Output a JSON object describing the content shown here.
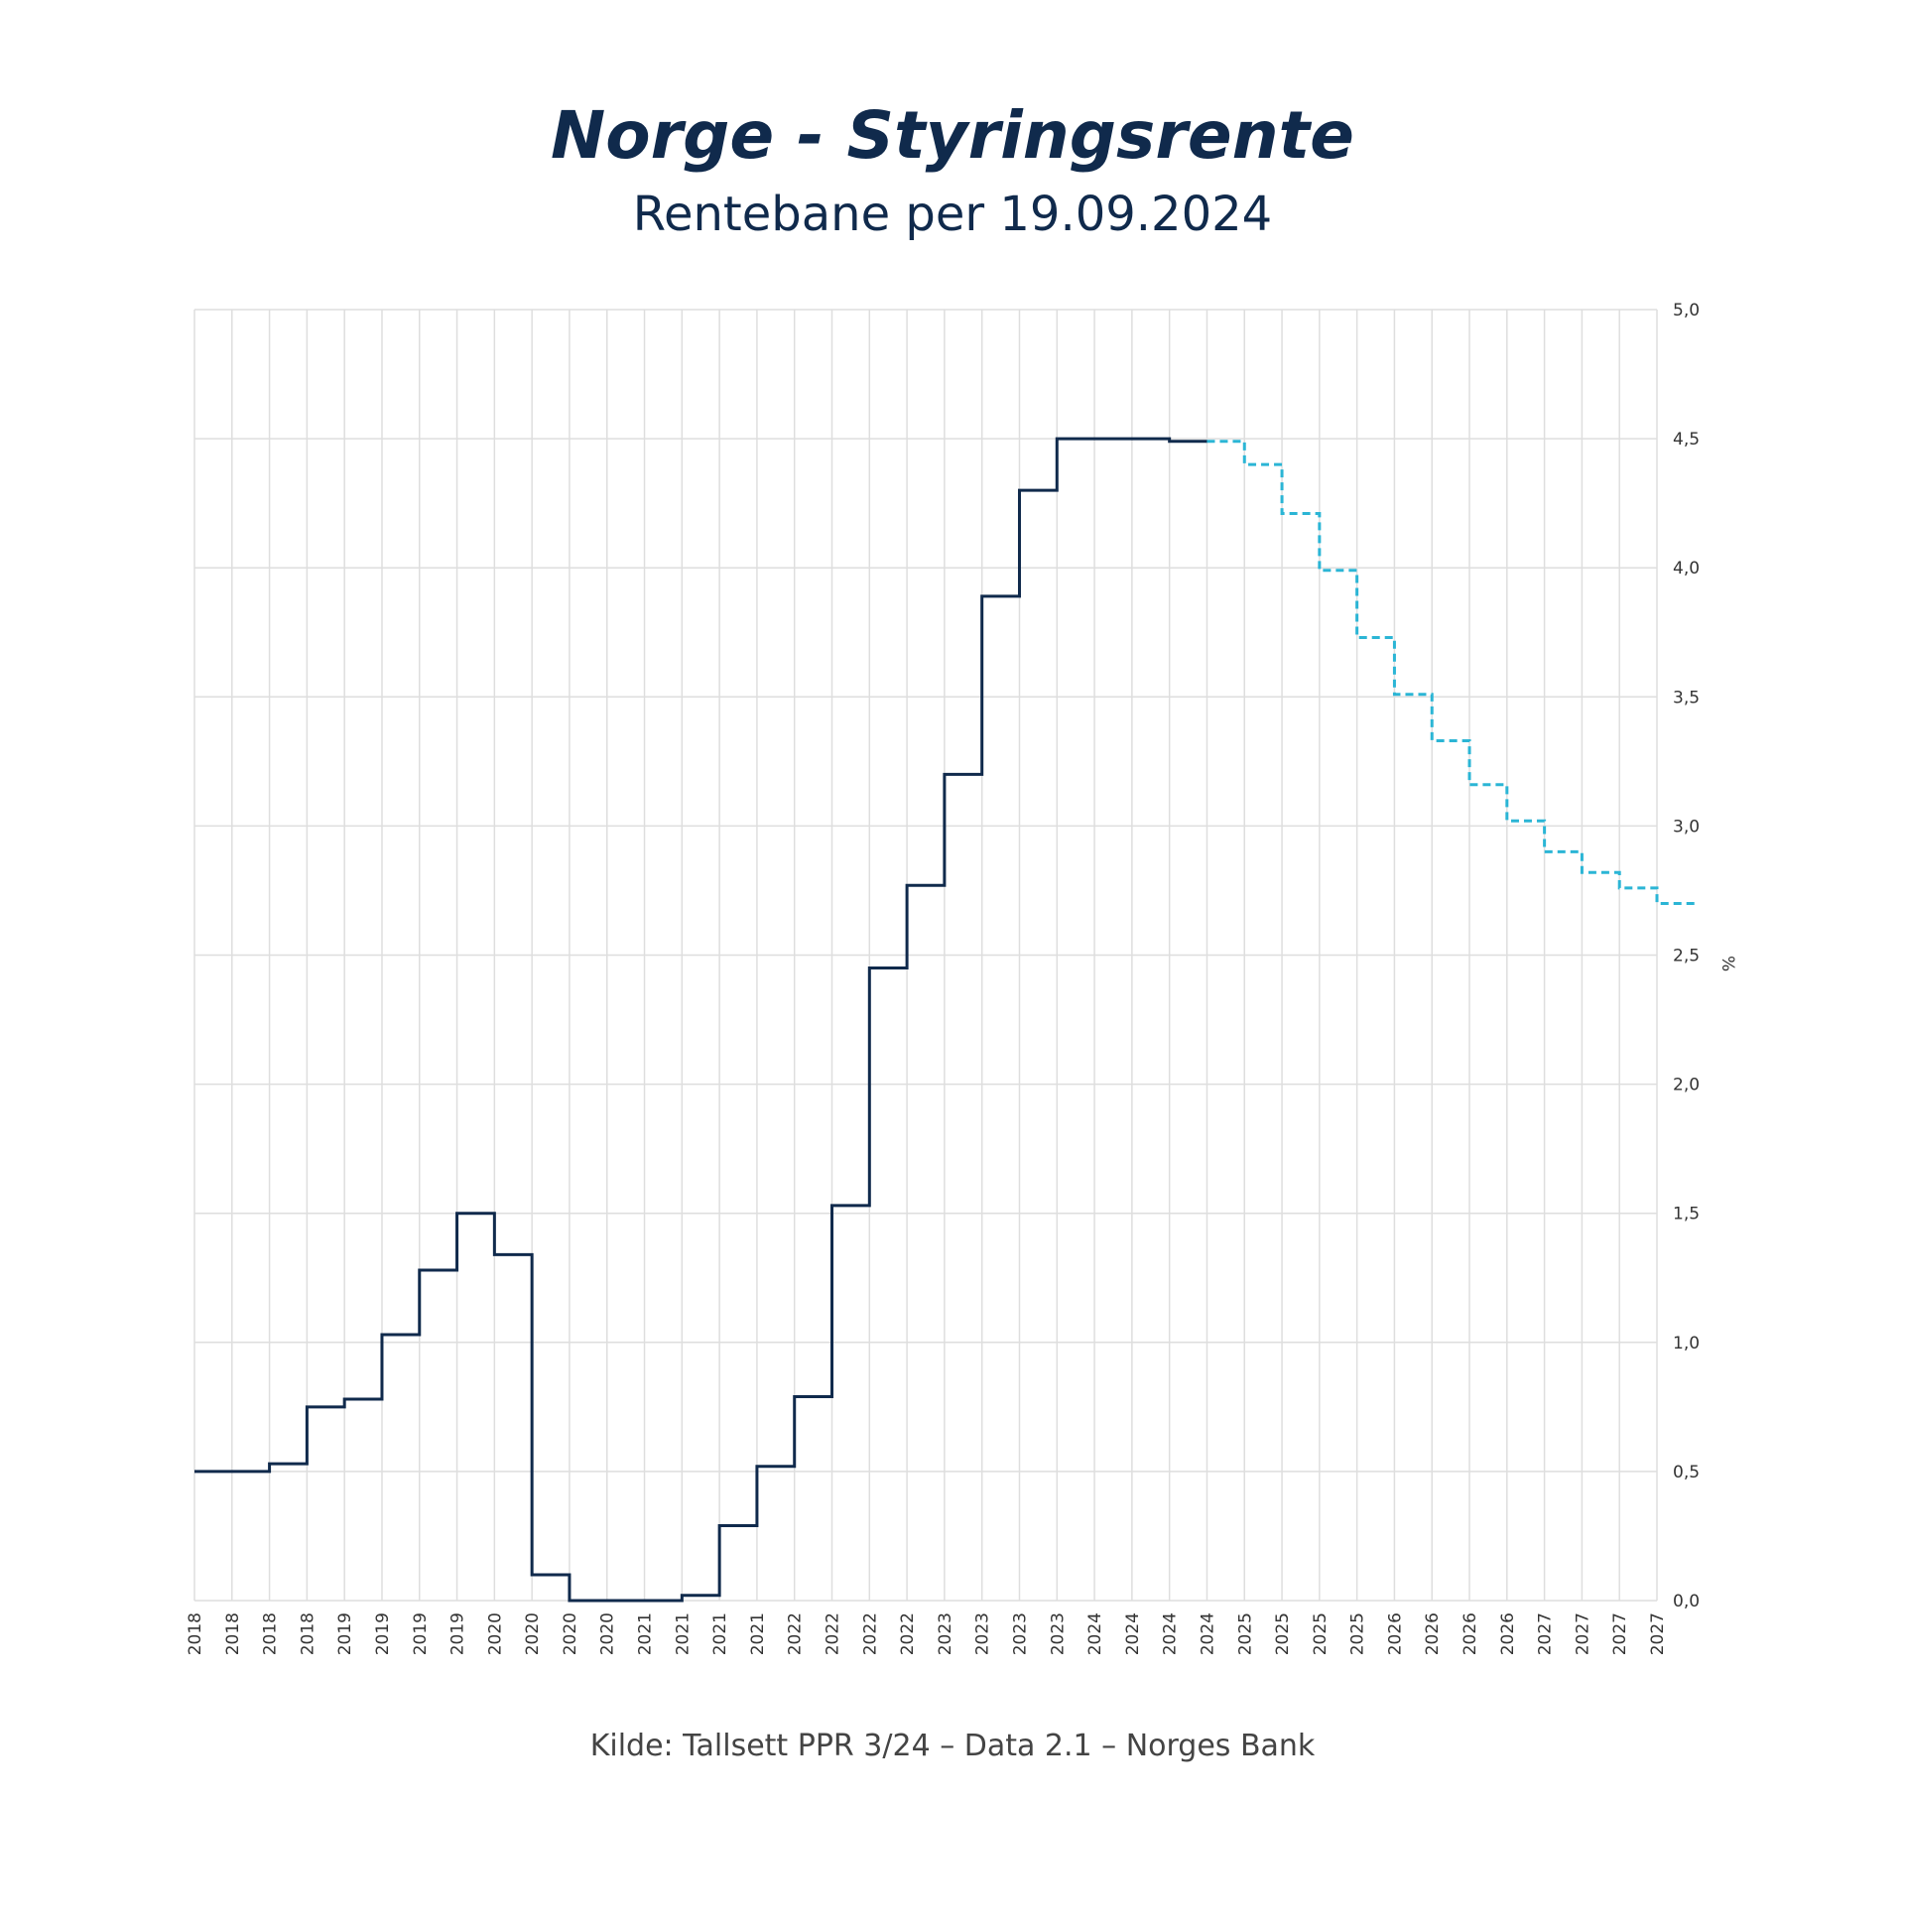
{
  "chart_data": {
    "type": "line",
    "title": "Norge - Styringsrente",
    "subtitle": "Rentebane per 19.09.2024",
    "source": "Kilde: Tallsett PPR 3/24 – Data 2.1 – Norges Bank",
    "ylabel": "%",
    "ylim": [
      0,
      5
    ],
    "y_ticks": [
      "0,0",
      "0,5",
      "1,0",
      "1,5",
      "2,0",
      "2,5",
      "3,0",
      "3,5",
      "4,0",
      "4,5",
      "5,0"
    ],
    "x_ticks": [
      "2018",
      "2018",
      "2018",
      "2018",
      "2019",
      "2019",
      "2019",
      "2019",
      "2020",
      "2020",
      "2020",
      "2020",
      "2021",
      "2021",
      "2021",
      "2021",
      "2022",
      "2022",
      "2022",
      "2022",
      "2023",
      "2023",
      "2023",
      "2023",
      "2024",
      "2024",
      "2024",
      "2024",
      "2025",
      "2025",
      "2025",
      "2025",
      "2026",
      "2026",
      "2026",
      "2026",
      "2027",
      "2027",
      "2027",
      "2027"
    ],
    "grid": true,
    "step": true,
    "series": [
      {
        "style": "solid",
        "color": "#102a4c",
        "values": [
          0.5,
          0.5,
          0.53,
          0.75,
          0.78,
          1.03,
          1.28,
          1.5,
          1.34,
          0.1,
          0.0,
          0.0,
          0.0,
          0.02,
          0.29,
          0.52,
          0.79,
          1.53,
          2.45,
          2.77,
          3.2,
          3.89,
          4.3,
          4.5,
          4.5,
          4.5,
          4.49
        ]
      },
      {
        "style": "dashed",
        "color": "#2bb5d5",
        "values": [
          4.49,
          4.4,
          4.21,
          3.99,
          3.73,
          3.51,
          3.33,
          3.16,
          3.02,
          2.9,
          2.82,
          2.76,
          2.7
        ]
      }
    ]
  }
}
